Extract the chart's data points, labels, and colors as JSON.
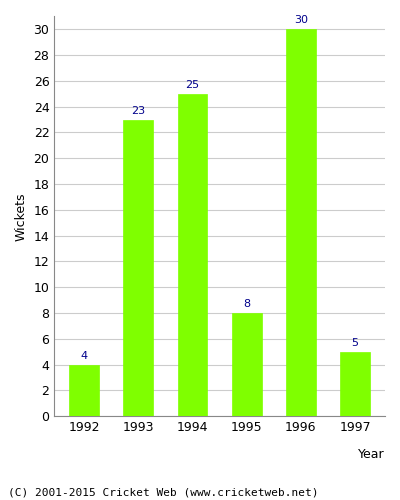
{
  "years": [
    "1992",
    "1993",
    "1994",
    "1995",
    "1996",
    "1997"
  ],
  "wickets": [
    4,
    23,
    25,
    8,
    30,
    5
  ],
  "bar_color": "#7fff00",
  "bar_edgecolor": "#7fff00",
  "label_color": "#00008B",
  "ylabel": "Wickets",
  "xlabel": "Year",
  "ylim": [
    0,
    31
  ],
  "yticks": [
    0,
    2,
    4,
    6,
    8,
    10,
    12,
    14,
    16,
    18,
    20,
    22,
    24,
    26,
    28,
    30
  ],
  "footer": "(C) 2001-2015 Cricket Web (www.cricketweb.net)",
  "label_fontsize": 8,
  "axis_fontsize": 9,
  "footer_fontsize": 8,
  "background_color": "#ffffff",
  "grid_color": "#cccccc",
  "bar_width": 0.55
}
